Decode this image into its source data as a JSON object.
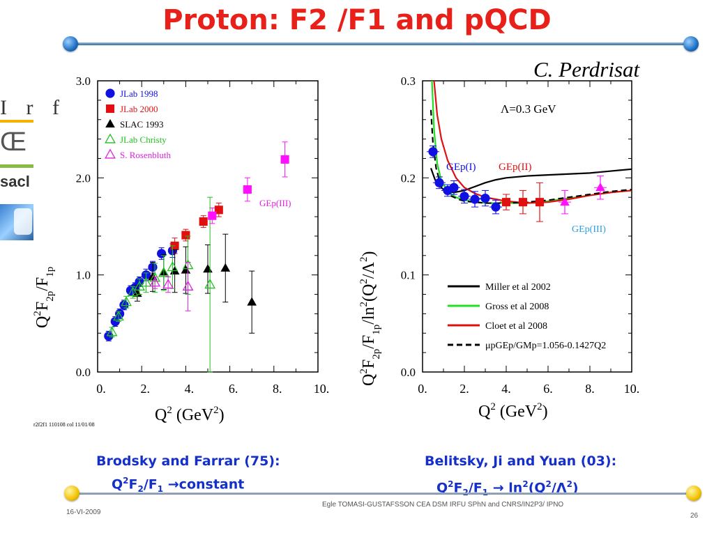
{
  "slide": {
    "title": "Proton: F2 /F1 and pQCD",
    "author": "C. Perdrisat",
    "logo_text": {
      "irfu": "I r f",
      "ce": "Œ",
      "saclay": "sacl"
    },
    "caption_left": {
      "line1": "Brodsky and Farrar (75):",
      "line2": "Q2F2/F1 →constant"
    },
    "caption_right": {
      "line1": "Belitsky, Ji and Yuan (03):",
      "line2": "Q2F2/F1 → ln2(Q2/Λ2)"
    },
    "footer_center": "Egle TOMASI-GUSTAFSSON     CEA DSM IRFU SPhN and    CNRS/IN2P3/ IPNO",
    "footer_date": "16-VI-2009",
    "page_number": "26",
    "plot_stamp": "r2f2f1 110108 col 11/01/08"
  },
  "chart_data": [
    {
      "type": "scatter",
      "xlabel": "Q2 (GeV2)",
      "ylabel": "Q2F2p/F1p",
      "xlim": [
        0,
        10
      ],
      "ylim": [
        0,
        3
      ],
      "xticks": [
        "0.",
        "2.",
        "4.",
        "6.",
        "8.",
        "10."
      ],
      "yticks": [
        "0.0",
        "1.0",
        "2.0",
        "3.0"
      ],
      "annotation": "GEp(III)",
      "legend_placement": "top-left",
      "series": [
        {
          "name": "JLab 1998",
          "marker": "circle",
          "color": "#1010e0",
          "x": [
            0.5,
            0.8,
            1.0,
            1.2,
            1.5,
            1.7,
            1.9,
            2.2,
            2.5,
            2.9,
            3.4
          ],
          "y": [
            0.37,
            0.52,
            0.6,
            0.69,
            0.84,
            0.87,
            0.93,
            1.0,
            1.08,
            1.22,
            1.25
          ],
          "err": [
            0.05,
            0.05,
            0.05,
            0.05,
            0.05,
            0.05,
            0.05,
            0.06,
            0.06,
            0.06,
            0.07
          ]
        },
        {
          "name": "JLab 2000",
          "marker": "square",
          "color": "#e01010",
          "x": [
            3.5,
            4.0,
            4.8,
            5.5
          ],
          "y": [
            1.3,
            1.41,
            1.55,
            1.67
          ],
          "err": [
            0.08,
            0.06,
            0.06,
            0.07
          ]
        },
        {
          "name": "SLAC 1993",
          "marker": "triangle",
          "color": "#000000",
          "x": [
            1.8,
            2.5,
            3.0,
            3.5,
            4.0,
            5.0,
            5.8,
            7.0
          ],
          "y": [
            0.81,
            0.98,
            1.03,
            1.04,
            1.05,
            1.06,
            1.07,
            0.72
          ],
          "err": [
            0.08,
            0.15,
            0.18,
            0.22,
            0.24,
            0.25,
            0.35,
            0.32
          ]
        },
        {
          "name": "JLab Christy",
          "marker": "triangle-open",
          "color": "#20c020",
          "x": [
            0.65,
            0.95,
            1.3,
            1.6,
            1.9,
            2.2,
            2.6,
            3.0,
            3.4,
            4.1,
            5.1
          ],
          "y": [
            0.41,
            0.57,
            0.72,
            0.82,
            0.88,
            0.92,
            0.97,
            1.02,
            1.08,
            1.1,
            0.9
          ],
          "err": [
            0.05,
            0.05,
            0.06,
            0.06,
            0.08,
            0.1,
            0.15,
            0.18,
            0.22,
            0.3,
            0.9
          ]
        },
        {
          "name": "S. Rosenbluth",
          "marker": "triangle-open",
          "color": "#e020e0",
          "x": [
            2.6,
            3.2,
            4.1
          ],
          "y": [
            0.92,
            0.9,
            0.88
          ],
          "err": [
            0.06,
            0.08,
            0.25
          ]
        },
        {
          "name": "GEp(III)",
          "marker": "square",
          "color": "#ff10ff",
          "x": [
            5.2,
            6.8,
            8.5
          ],
          "y": [
            1.61,
            1.88,
            2.19
          ],
          "err": [
            0.08,
            0.12,
            0.18
          ]
        }
      ]
    },
    {
      "type": "line",
      "xlabel": "Q2 (GeV2)",
      "ylabel": "Q2F2p/F1p/ln2(Q2/Λ2)",
      "xlim": [
        0,
        10
      ],
      "ylim": [
        0,
        0.3
      ],
      "xticks": [
        "0.",
        "2.",
        "4.",
        "6.",
        "8.",
        "10."
      ],
      "yticks": [
        "0.0",
        "0.1",
        "0.2",
        "0.3"
      ],
      "annotation": "Λ=0.3  GeV",
      "labels": [
        "GEp(I)",
        "GEp(II)",
        "GEp(III)"
      ],
      "legend_placement": "bottom-right",
      "series": [
        {
          "name": "Miller et al 2002",
          "color": "#000000",
          "dash": false,
          "x": [
            0.4,
            0.6,
            0.8,
            1.0,
            1.2,
            1.5,
            2.0,
            2.5,
            3.0,
            3.5,
            4.0,
            5.0,
            6.0,
            7.0,
            8.0,
            9.0,
            10.0
          ],
          "y": [
            0.21,
            0.198,
            0.192,
            0.188,
            0.186,
            0.185,
            0.187,
            0.191,
            0.195,
            0.198,
            0.2,
            0.202,
            0.203,
            0.204,
            0.205,
            0.207,
            0.209
          ]
        },
        {
          "name": "Gross et al 2008",
          "color": "#20e020",
          "dash": false,
          "x": [
            0.45,
            0.55,
            0.7,
            0.9,
            1.2,
            1.6,
            2.0,
            3.0,
            4.0,
            5.0,
            6.0,
            7.0,
            8.0,
            9.0,
            10.0
          ],
          "y": [
            0.3,
            0.25,
            0.215,
            0.197,
            0.186,
            0.18,
            0.177,
            0.174,
            0.174,
            0.174,
            0.176,
            0.179,
            0.182,
            0.185,
            0.187
          ]
        },
        {
          "name": "Cloet et al 2008",
          "color": "#e01010",
          "dash": false,
          "x": [
            0.55,
            0.7,
            0.9,
            1.2,
            1.6,
            2.0,
            2.5,
            3.0,
            3.5,
            4.0,
            5.0,
            6.0,
            7.0,
            8.0,
            9.0,
            10.0
          ],
          "y": [
            0.3,
            0.265,
            0.24,
            0.218,
            0.2,
            0.19,
            0.184,
            0.18,
            0.178,
            0.176,
            0.174,
            0.175,
            0.178,
            0.182,
            0.185,
            0.187
          ]
        },
        {
          "name": "μpGEp/GMp=1.056-0.1427Q2",
          "color": "#000000",
          "dash": true,
          "x": [
            0.4,
            0.5,
            0.65,
            0.8,
            1.0,
            1.3,
            1.7,
            2.0,
            3.0,
            4.0,
            5.0,
            6.0,
            7.0,
            8.0,
            9.0,
            10.0
          ],
          "y": [
            0.27,
            0.235,
            0.21,
            0.198,
            0.189,
            0.182,
            0.178,
            0.176,
            0.174,
            0.174,
            0.175,
            0.177,
            0.18,
            0.183,
            0.186,
            0.188
          ]
        }
      ],
      "points": [
        {
          "set": "GEp(I)",
          "marker": "circle",
          "color": "#1010e0",
          "x": [
            0.5,
            0.8,
            1.2,
            1.5,
            2.0,
            2.5,
            3.0,
            3.5
          ],
          "y": [
            0.227,
            0.195,
            0.187,
            0.19,
            0.181,
            0.178,
            0.179,
            0.17
          ],
          "err": [
            0.006,
            0.006,
            0.006,
            0.007,
            0.007,
            0.008,
            0.008,
            0.007
          ]
        },
        {
          "set": "GEp(II)",
          "marker": "square",
          "color": "#e01010",
          "x": [
            4.0,
            4.8,
            5.6
          ],
          "y": [
            0.175,
            0.175,
            0.175
          ],
          "err": [
            0.008,
            0.012,
            0.02
          ]
        },
        {
          "set": "GEp(III)",
          "marker": "triangle",
          "color": "#ff10ff",
          "x": [
            6.8,
            8.5
          ],
          "y": [
            0.175,
            0.19
          ],
          "err": [
            0.012,
            0.012
          ]
        }
      ]
    }
  ]
}
